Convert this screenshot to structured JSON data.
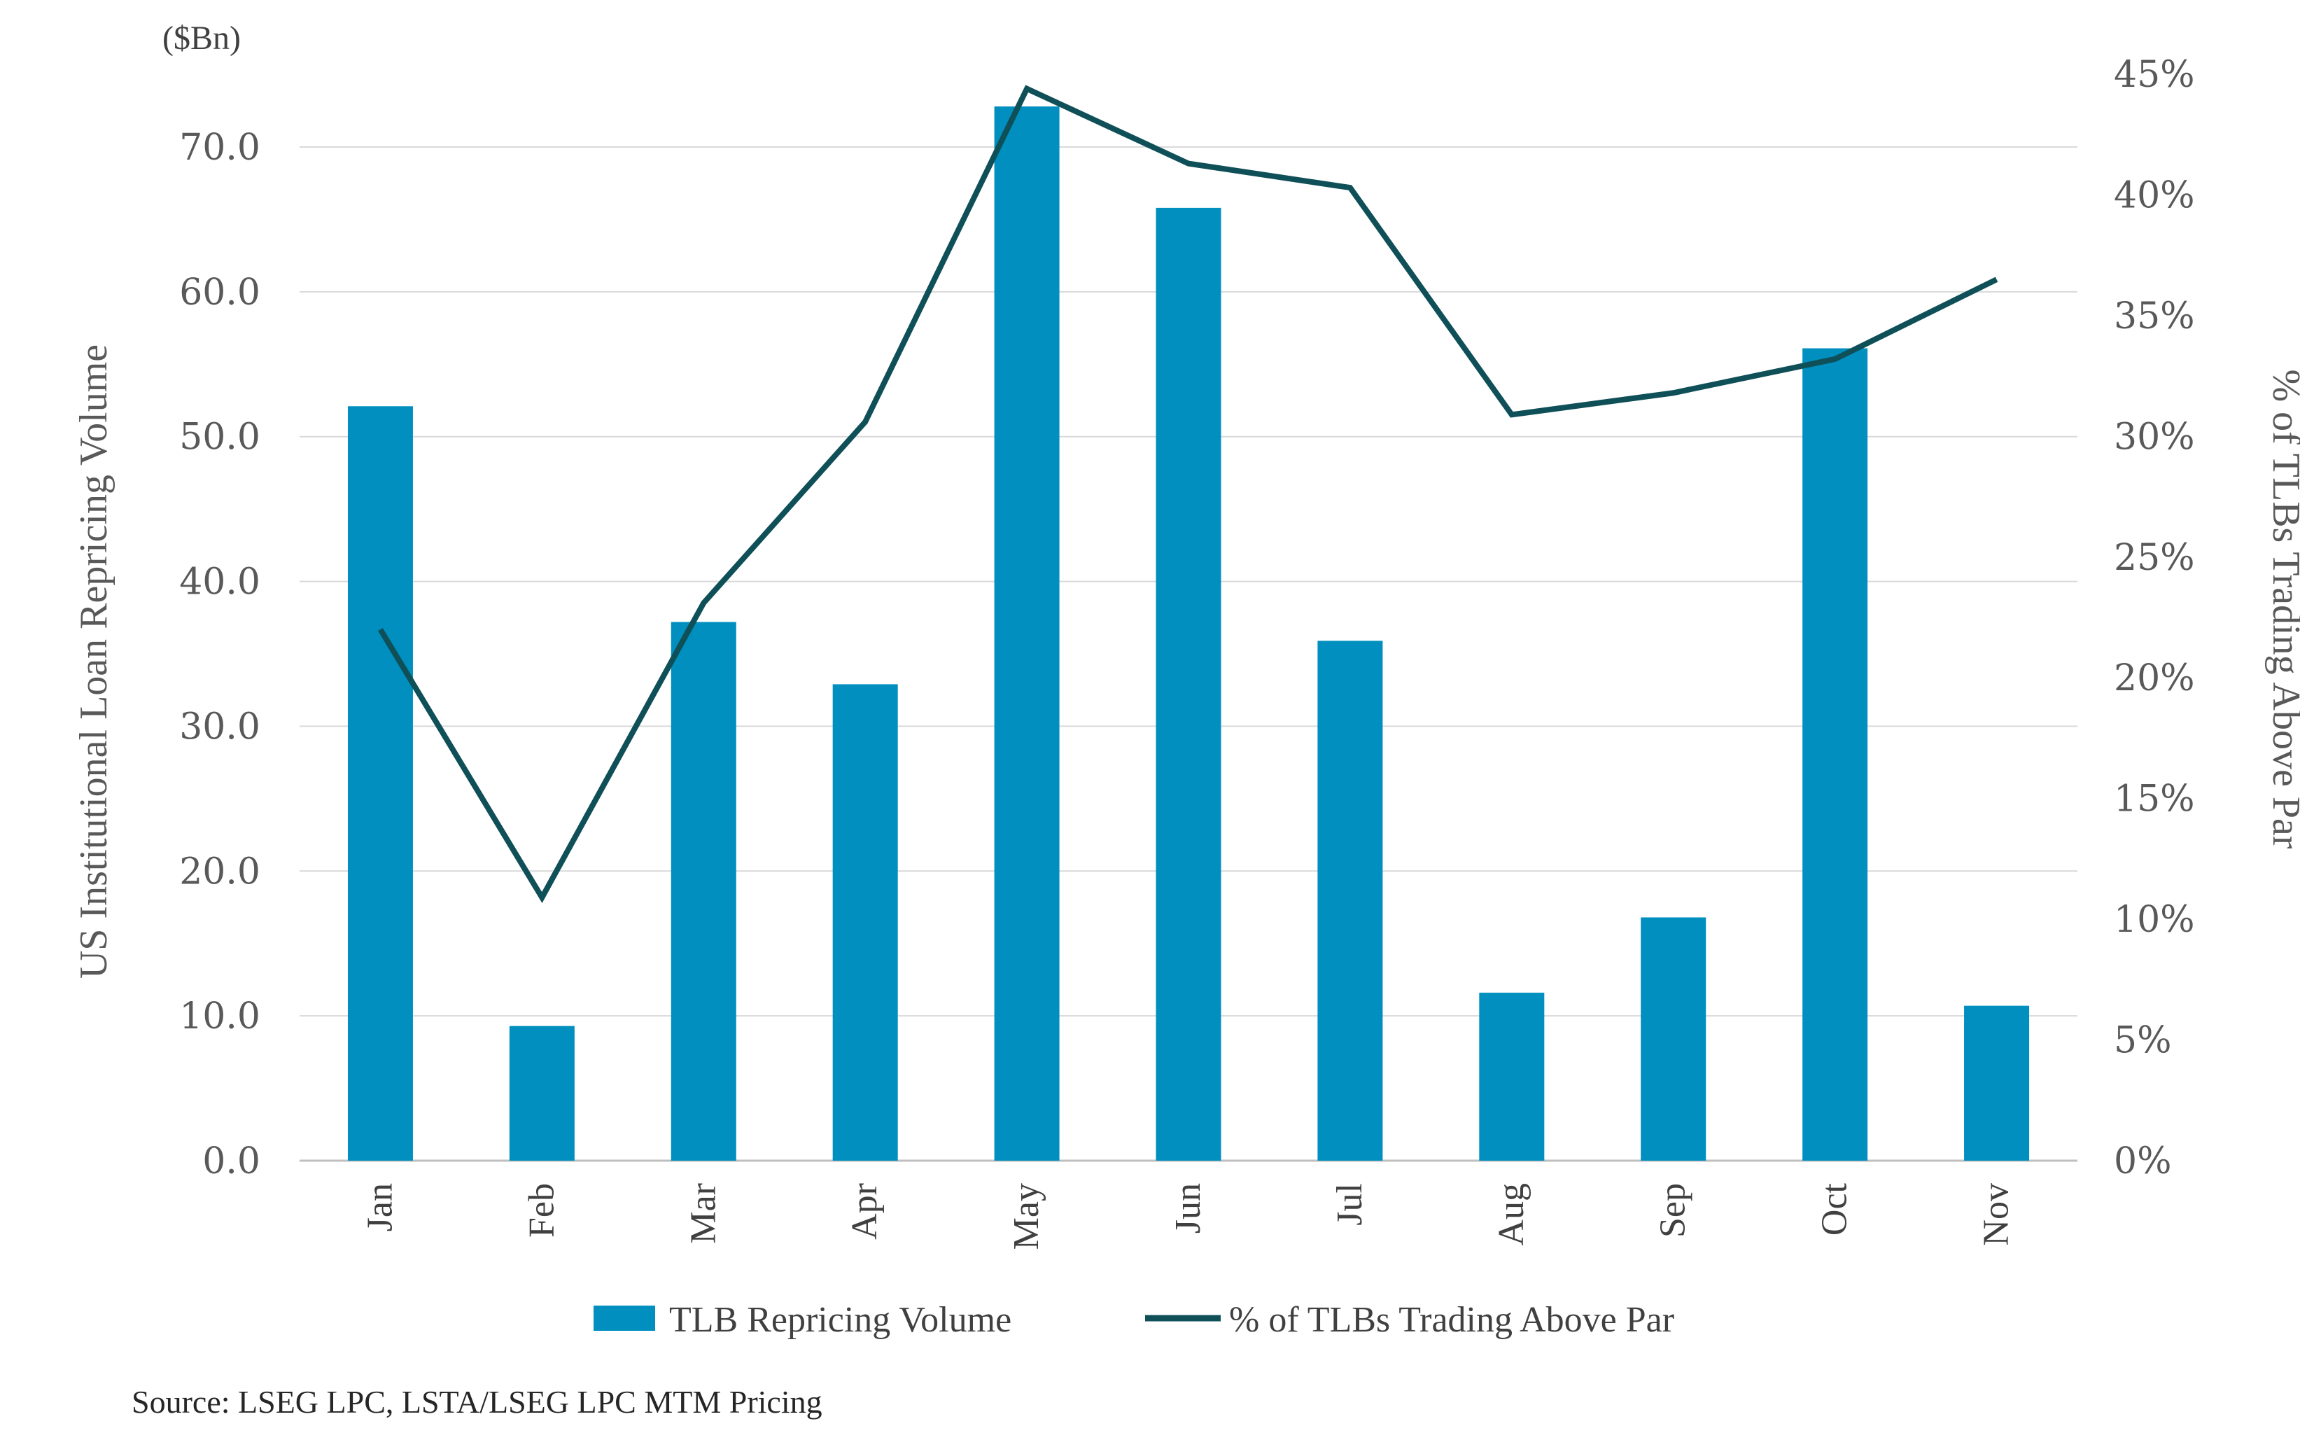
{
  "chart_data": {
    "type": "bar",
    "categories": [
      "Jan",
      "Feb",
      "Mar",
      "Apr",
      "May",
      "Jun",
      "Jul",
      "Aug",
      "Sep",
      "Oct",
      "Nov"
    ],
    "series": [
      {
        "name": "TLB Repricing Volume",
        "type": "bar",
        "axis": "left",
        "color": "#008FBF",
        "values": [
          52.1,
          9.3,
          37.2,
          32.9,
          72.8,
          65.8,
          35.9,
          11.6,
          16.8,
          56.1,
          10.7
        ]
      },
      {
        "name": "% of TLBs Trading Above Par",
        "type": "line",
        "axis": "right",
        "color": "#0F4F57",
        "values": [
          22.0,
          10.9,
          23.1,
          30.6,
          44.4,
          41.3,
          40.3,
          30.9,
          31.8,
          33.2,
          36.5
        ]
      }
    ],
    "ylabel": "US Institutional Loan Repricing Volume",
    "y2label": "% of TLBs Trading Above Par",
    "unit_label": "($Bn)",
    "ylim": [
      0,
      70
    ],
    "y2lim": [
      0,
      45
    ],
    "yticks": [
      "0.0",
      "10.0",
      "20.0",
      "30.0",
      "40.0",
      "50.0",
      "60.0",
      "70.0"
    ],
    "y2ticks": [
      "0%",
      "5%",
      "10%",
      "15%",
      "20%",
      "25%",
      "30%",
      "35%",
      "40%",
      "45%"
    ],
    "grid": true,
    "legend_position": "bottom",
    "source": "Source: LSEG LPC, LSTA/LSEG LPC MTM Pricing"
  }
}
